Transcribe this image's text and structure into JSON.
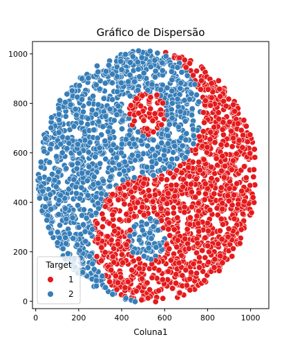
{
  "chart_data": {
    "type": "scatter",
    "title": "Gráfico de Dispersão",
    "xlabel": "Coluna1",
    "ylabel": "",
    "xlim": [
      -15,
      1085
    ],
    "ylim": [
      -30,
      1050
    ],
    "xticks": [
      0,
      200,
      400,
      600,
      800,
      1000
    ],
    "yticks": [
      0,
      200,
      400,
      600,
      800,
      1000
    ],
    "grid": false,
    "legend": {
      "title": "Target",
      "position": "lower-left"
    },
    "pattern": {
      "shape": "yin-yang disk",
      "center": [
        520,
        505
      ],
      "radius": 510,
      "seed_points": 2600
    },
    "series": [
      {
        "name": "1",
        "color": "#e41a1c"
      },
      {
        "name": "2",
        "color": "#377eb8"
      }
    ]
  }
}
